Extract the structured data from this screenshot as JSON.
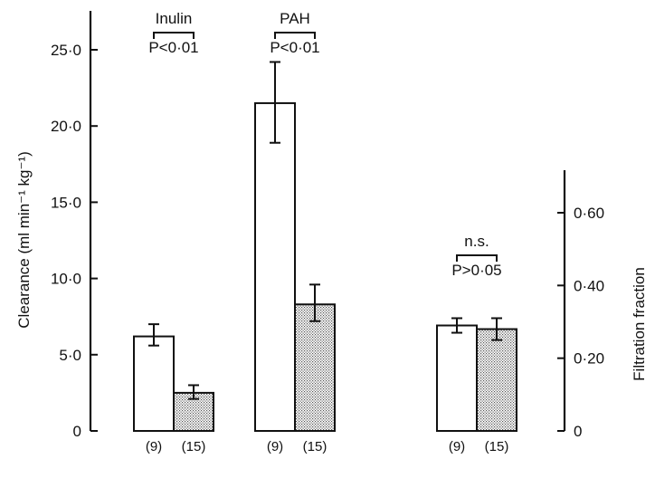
{
  "chart_data": {
    "type": "bar",
    "ylabel_left": "Clearance (ml min⁻¹ kg⁻¹)",
    "ylabel_right": "Filtration fraction",
    "left_axis": {
      "ylim": [
        0,
        27.5
      ],
      "ticks": [
        0,
        5,
        10,
        15,
        20,
        25
      ],
      "tick_labels": [
        "0",
        "5·0",
        "10·0",
        "15·0",
        "20·0",
        "25·0"
      ]
    },
    "right_axis": {
      "ylim": [
        0,
        0.7
      ],
      "ticks": [
        0,
        0.2,
        0.4,
        0.6
      ],
      "tick_labels": [
        "0",
        "0·20",
        "0·40",
        "0·60"
      ]
    },
    "groups": [
      {
        "label": "Inulin",
        "p_text": "P<0·01",
        "axis": "left",
        "bars": [
          {
            "value": 6.2,
            "err_low": 5.6,
            "err_high": 7.0,
            "fill": "open",
            "n_label": "(9)"
          },
          {
            "value": 2.5,
            "err_low": 2.1,
            "err_high": 3.0,
            "fill": "stippled",
            "n_label": "(15)"
          }
        ]
      },
      {
        "label": "PAH",
        "p_text": "P<0·01",
        "axis": "left",
        "bars": [
          {
            "value": 21.5,
            "err_low": 18.9,
            "err_high": 24.2,
            "fill": "open",
            "n_label": "(9)"
          },
          {
            "value": 8.3,
            "err_low": 7.2,
            "err_high": 9.6,
            "fill": "stippled",
            "n_label": "(15)"
          }
        ]
      },
      {
        "label": "n.s.",
        "p_text": "P>0·05",
        "axis": "right",
        "bars": [
          {
            "value": 0.29,
            "err_low": 0.27,
            "err_high": 0.31,
            "fill": "open",
            "n_label": "(9)"
          },
          {
            "value": 0.28,
            "err_low": 0.25,
            "err_high": 0.31,
            "fill": "stippled",
            "n_label": "(15)"
          }
        ]
      }
    ],
    "grid": false,
    "colors": {
      "ink": "#111111",
      "stipple": "#9a9a9a",
      "background": "#ffffff"
    }
  }
}
